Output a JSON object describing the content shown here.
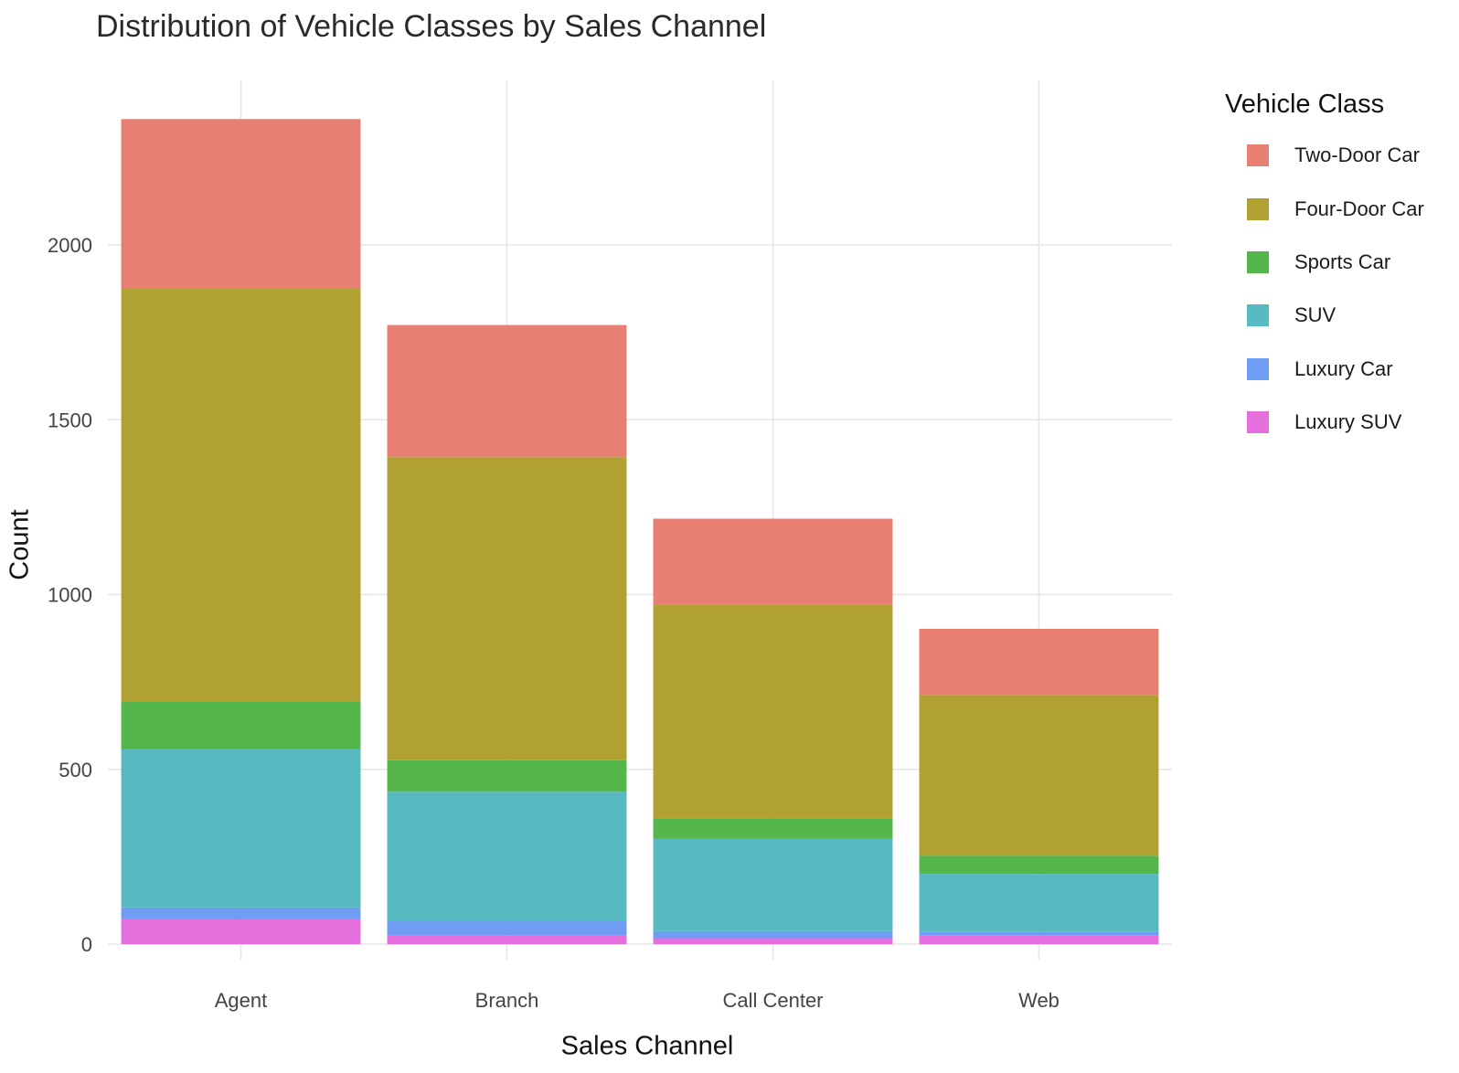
{
  "chart_data": {
    "type": "bar",
    "stacked": true,
    "title": "Distribution of Vehicle Classes by Sales Channel",
    "xlabel": "Sales Channel",
    "ylabel": "Count",
    "categories": [
      "Agent",
      "Branch",
      "Call Center",
      "Web"
    ],
    "ylim": [
      0,
      2475
    ],
    "yticks": [
      0,
      500,
      1000,
      1500,
      2000
    ],
    "grid": true,
    "legend_title": "Vehicle Class",
    "legend_position": "right",
    "series": [
      {
        "name": "Luxury SUV",
        "color": "#E56FDC",
        "values": [
          72,
          24,
          17,
          24
        ]
      },
      {
        "name": "Luxury Car",
        "color": "#6F9DF3",
        "values": [
          33,
          44,
          20,
          12
        ]
      },
      {
        "name": "SUV",
        "color": "#57BAC0",
        "values": [
          453,
          368,
          265,
          165
        ]
      },
      {
        "name": "Sports Car",
        "color": "#55B74B",
        "values": [
          135,
          90,
          58,
          52
        ]
      },
      {
        "name": "Four-Door Car",
        "color": "#B1A132",
        "values": [
          1183,
          867,
          611,
          460
        ]
      },
      {
        "name": "Two-Door Car",
        "color": "#E77F73",
        "values": [
          484,
          378,
          246,
          189
        ]
      }
    ],
    "legend_order": [
      "Two-Door Car",
      "Four-Door Car",
      "Sports Car",
      "SUV",
      "Luxury Car",
      "Luxury SUV"
    ]
  }
}
